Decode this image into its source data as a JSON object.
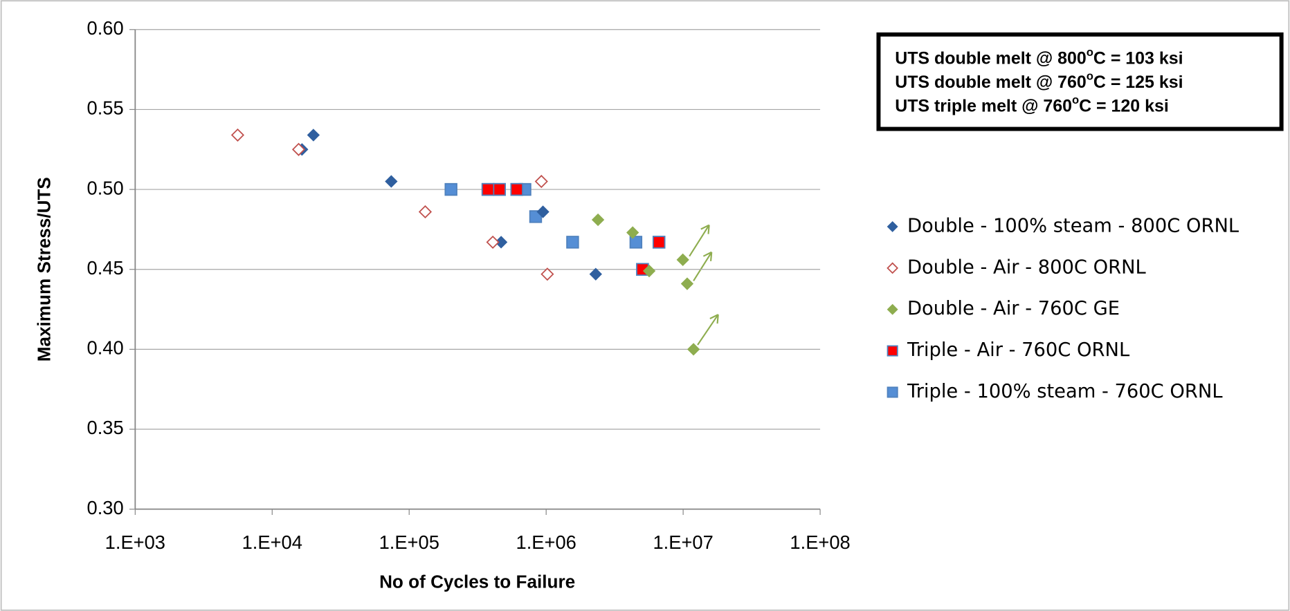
{
  "chart_data": {
    "type": "scatter",
    "xlabel": "No of Cycles to Failure",
    "ylabel": "Maximum Stress/UTS",
    "xscale": "log",
    "xlim": [
      1000,
      100000000
    ],
    "xticks": [
      {
        "value": 1000,
        "label": "1.E+03"
      },
      {
        "value": 10000,
        "label": "1.E+04"
      },
      {
        "value": 100000,
        "label": "1.E+05"
      },
      {
        "value": 1000000,
        "label": "1.E+06"
      },
      {
        "value": 10000000,
        "label": "1.E+07"
      },
      {
        "value": 100000000,
        "label": "1.E+08"
      }
    ],
    "ylim": [
      0.3,
      0.6
    ],
    "yticks": [
      {
        "value": 0.3,
        "label": "0.30"
      },
      {
        "value": 0.35,
        "label": "0.35"
      },
      {
        "value": 0.4,
        "label": "0.40"
      },
      {
        "value": 0.45,
        "label": "0.45"
      },
      {
        "value": 0.5,
        "label": "0.50"
      },
      {
        "value": 0.55,
        "label": "0.55"
      },
      {
        "value": 0.6,
        "label": "0.60"
      }
    ],
    "grid": true,
    "legend": "right",
    "annotations": [
      [
        "UTS double melt @ 800",
        "o",
        "C = 103 ksi"
      ],
      [
        "UTS double melt @ 760",
        "o",
        "C = 125 ksi"
      ],
      [
        "UTS triple melt @ 760",
        "o",
        "C = 120 ksi"
      ]
    ],
    "series": [
      {
        "name": "Double - 100% steam - 800C ORNL",
        "color": "#2f5f9f",
        "marker": "diamond",
        "x": [
          16500,
          20000,
          74000,
          469000,
          948000,
          2300000
        ],
        "values": [
          0.525,
          0.534,
          0.505,
          0.467,
          0.486,
          0.447
        ]
      },
      {
        "name": "Double - Air - 800C ORNL",
        "color": "#c0504d",
        "marker": "diamond-open",
        "x": [
          5600,
          15600,
          131000,
          408000,
          923000,
          1020000
        ],
        "values": [
          0.534,
          0.525,
          0.486,
          0.467,
          0.505,
          0.447
        ]
      },
      {
        "name": "Double - Air - 760C GE",
        "color": "#8ead4f",
        "marker": "diamond",
        "x": [
          2390000,
          4280000,
          5650000,
          9950000,
          10700000,
          11900000
        ],
        "values": [
          0.481,
          0.473,
          0.449,
          0.456,
          0.441,
          0.4
        ]
      },
      {
        "name": "Triple - Air - 760C ORNL",
        "color": "#ff0000",
        "marker": "square",
        "x": [
          376000,
          456000,
          610000,
          5050000,
          6660000
        ],
        "values": [
          0.5,
          0.5,
          0.5,
          0.45,
          0.467
        ]
      },
      {
        "name": "Triple - 100% steam - 760C ORNL",
        "color": "#558ed5",
        "marker": "square",
        "x": [
          202000,
          376000,
          456000,
          610000,
          700000,
          838000,
          1560000,
          4520000,
          5050000,
          6660000
        ],
        "values": [
          0.5,
          0.5,
          0.5,
          0.5,
          0.5,
          0.483,
          0.467,
          0.467,
          0.45,
          0.467
        ]
      }
    ]
  }
}
